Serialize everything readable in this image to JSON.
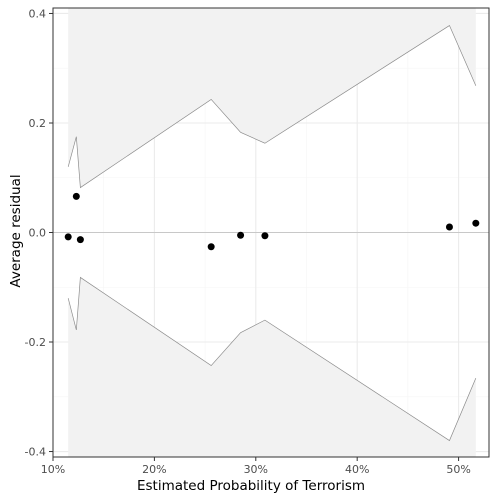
{
  "chart_data": {
    "type": "scatter",
    "title": "",
    "xlabel": "Estimated Probability of Terrorism",
    "ylabel": "Average residual",
    "x_format": "percent",
    "xlim": [
      0.1,
      0.53
    ],
    "ylim": [
      -0.41,
      0.41
    ],
    "x_ticks": [
      0.1,
      0.2,
      0.3,
      0.4,
      0.5
    ],
    "x_tick_labels": [
      "10%",
      "20%",
      "30%",
      "40%",
      "50%"
    ],
    "y_ticks": [
      -0.4,
      -0.2,
      0.0,
      0.2,
      0.4
    ],
    "y_tick_labels": [
      "-0.4",
      "-0.2",
      "0.0",
      "0.2",
      "0.4"
    ],
    "grid": true,
    "reference_line_y": 0,
    "points": {
      "x": [
        0.115,
        0.127,
        0.256,
        0.285,
        0.309,
        0.491,
        0.517
      ],
      "y": [
        -0.008,
        -0.013,
        -0.026,
        -0.005,
        -0.006,
        0.01,
        0.017
      ]
    },
    "extra_point": {
      "x": 0.123,
      "y": 0.066
    },
    "band_upper": {
      "x": [
        0.115,
        0.123,
        0.127,
        0.256,
        0.285,
        0.309,
        0.491,
        0.517
      ],
      "y": [
        0.12,
        0.175,
        0.082,
        0.243,
        0.183,
        0.163,
        0.378,
        0.268
      ]
    },
    "band_lower": {
      "x": [
        0.115,
        0.123,
        0.127,
        0.256,
        0.285,
        0.309,
        0.491,
        0.517
      ],
      "y": [
        -0.12,
        -0.178,
        -0.082,
        -0.243,
        -0.183,
        -0.16,
        -0.38,
        -0.266
      ]
    },
    "colors": {
      "background": "#ffffff",
      "panel_border": "#333333",
      "grid_major": "#ebebeb",
      "grid_minor": "#f5f5f5",
      "band_fill": "#f2f2f2",
      "band_line": "#8c8c8c",
      "zero_line": "#c8c8c8",
      "points": "#000000"
    }
  }
}
